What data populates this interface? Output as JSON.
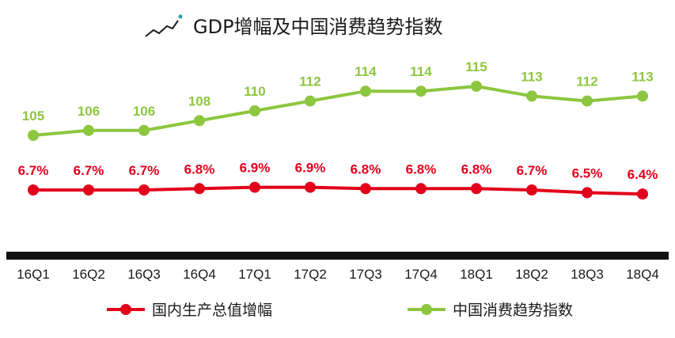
{
  "chart_data": {
    "type": "line",
    "title": "GDP增幅及中国消费趋势指数",
    "categories": [
      "16Q1",
      "16Q2",
      "16Q3",
      "16Q4",
      "17Q1",
      "17Q2",
      "17Q3",
      "17Q4",
      "18Q1",
      "18Q2",
      "18Q3",
      "18Q4"
    ],
    "series": [
      {
        "name": "国内生产总值增幅",
        "color": "#e3001b",
        "values": [
          6.7,
          6.7,
          6.7,
          6.8,
          6.9,
          6.9,
          6.8,
          6.8,
          6.8,
          6.7,
          6.5,
          6.4
        ],
        "labels": [
          "6.7%",
          "6.7%",
          "6.7%",
          "6.8%",
          "6.9%",
          "6.9%",
          "6.8%",
          "6.8%",
          "6.8%",
          "6.7%",
          "6.5%",
          "6.4%"
        ]
      },
      {
        "name": "中国消费趋势指数",
        "color": "#8dc63f",
        "values": [
          105,
          106,
          106,
          108,
          110,
          112,
          114,
          114,
          115,
          113,
          112,
          113
        ],
        "labels": [
          "105",
          "106",
          "106",
          "108",
          "110",
          "112",
          "114",
          "114",
          "115",
          "113",
          "112",
          "113"
        ]
      }
    ],
    "grid": false,
    "legend_position": "bottom"
  }
}
